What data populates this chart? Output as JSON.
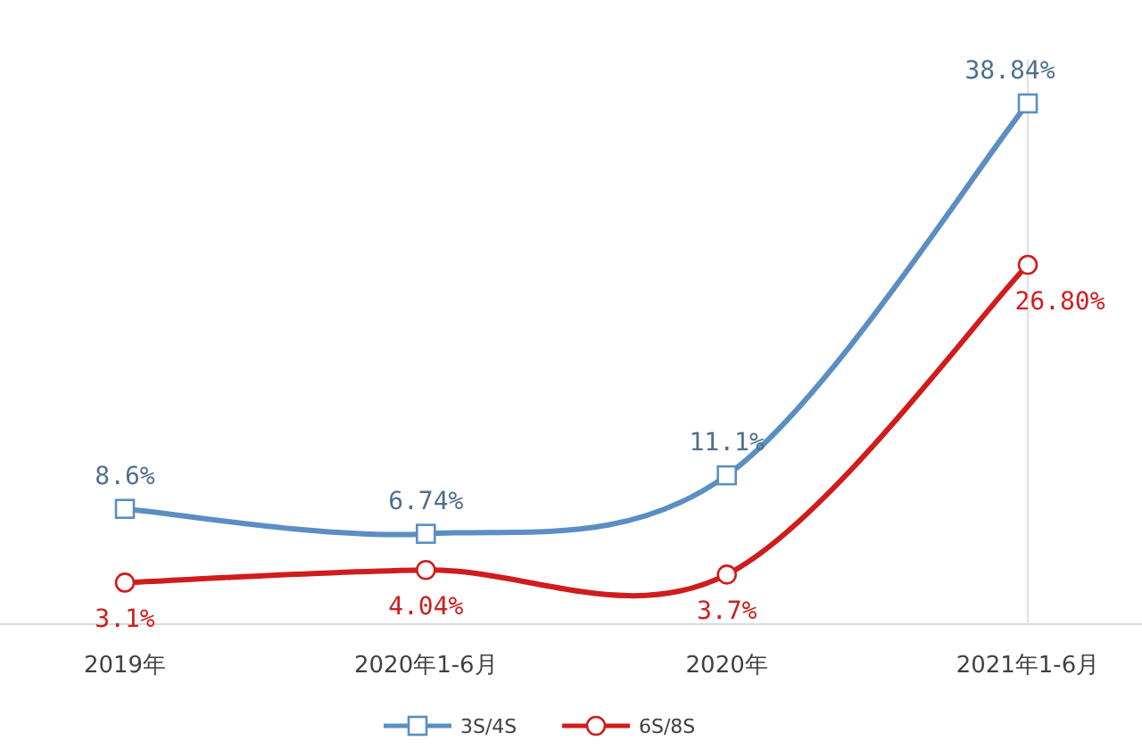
{
  "chart_data": {
    "type": "line",
    "categories": [
      "2019年",
      "2020年1-6月",
      "2020年",
      "2021年1-6月"
    ],
    "series": [
      {
        "name": "3S/4S",
        "color": "#5b8ec2",
        "marker": "square",
        "values": [
          8.6,
          6.74,
          11.1,
          38.84
        ],
        "value_labels": [
          "8.6%",
          "6.74%",
          "11.1%",
          "38.84%"
        ]
      },
      {
        "name": "6S/8S",
        "color": "#d01c1c",
        "marker": "circle",
        "values": [
          3.1,
          4.04,
          3.7,
          26.8
        ],
        "value_labels": [
          "3.1%",
          "4.04%",
          "3.7%",
          "26.80%"
        ]
      }
    ],
    "tick_labels": "x",
    "legend": "bottom",
    "line_style": "solid"
  }
}
